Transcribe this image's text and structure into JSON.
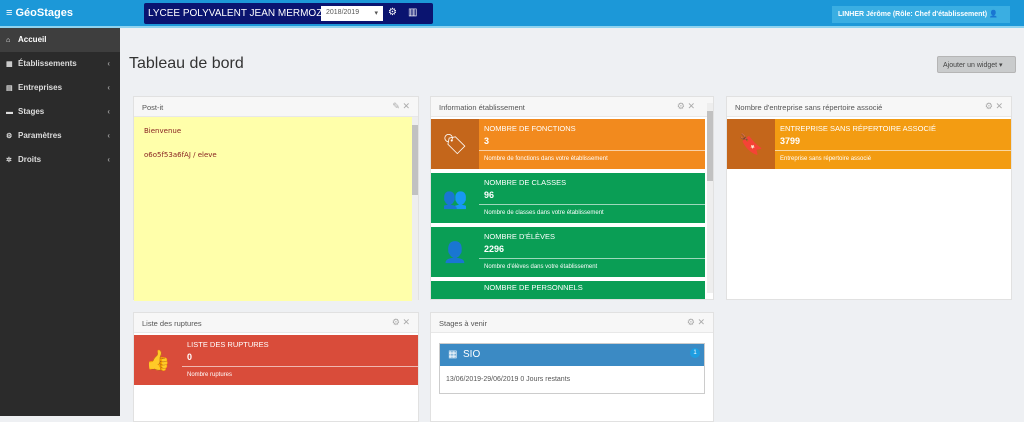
{
  "topbar": {
    "brand": "GéoStages",
    "school": "LYCEE POLYVALENT JEAN MERMOZ",
    "year": "2018/2019",
    "user": "LINHER Jérôme (Rôle: Chef d'établissement)"
  },
  "sidebar": {
    "items": [
      {
        "label": "Accueil",
        "icon": "home-icon"
      },
      {
        "label": "Établissements",
        "icon": "building-icon"
      },
      {
        "label": "Entreprises",
        "icon": "office-icon"
      },
      {
        "label": "Stages",
        "icon": "briefcase-icon"
      },
      {
        "label": "Paramètres",
        "icon": "cogs-icon"
      },
      {
        "label": "Droits",
        "icon": "gear-icon"
      }
    ]
  },
  "main": {
    "title": "Tableau de bord",
    "add_widget": "Ajouter un widget"
  },
  "postit": {
    "title": "Post-it",
    "line1": "Bienvenue",
    "line2": "o6o5f53a6fAJ / eleve"
  },
  "info": {
    "title": "Information établissement",
    "boxes": [
      {
        "title": "NOMBRE DE FONCTIONS",
        "value": "3",
        "desc": "Nombre de fonctions dans votre établissement",
        "color": "#f28a1e"
      },
      {
        "title": "NOMBRE DE CLASSES",
        "value": "96",
        "desc": "Nombre de classes dans votre établissement",
        "color": "#0a9e55"
      },
      {
        "title": "NOMBRE D'ÉLÈVES",
        "value": "2296",
        "desc": "Nombre d'élèves dans votre établissement",
        "color": "#0a9e55"
      },
      {
        "title": "NOMBRE DE PERSONNELS",
        "color": "#0a9e55"
      }
    ]
  },
  "entreprise": {
    "title": "Nombre d'entreprise sans répertoire associé",
    "box_title": "ENTREPRISE SANS RÉPERTOIRE ASSOCIÉ",
    "value": "3799",
    "desc": "Entreprise sans répertoire associé",
    "color": "#f39c12"
  },
  "ruptures": {
    "title": "Liste des ruptures",
    "box_title": "LISTE DES RUPTURES",
    "value": "0",
    "desc": "Nombre ruptures",
    "color": "#d94c3a"
  },
  "stages": {
    "title": "Stages à venir",
    "name": "SIO",
    "badge": "1",
    "dates": "13/06/2019-29/06/2019 0 Jours restants"
  }
}
